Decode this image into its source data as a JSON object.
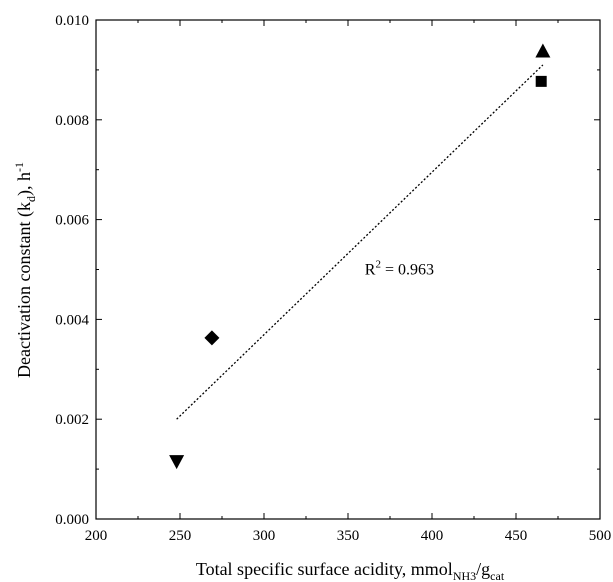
{
  "chart_data": {
    "type": "scatter",
    "title": "",
    "xlabel": {
      "main": "Total specific surface acidity, mmol",
      "sub1": "NH3",
      "sep": "/g",
      "sub2": "cat"
    },
    "ylabel": {
      "main": "Deactivation constant (k",
      "sub": "d",
      "mid": "), h",
      "sup": "-1"
    },
    "xlim": [
      200,
      500
    ],
    "ylim": [
      0.0,
      0.01
    ],
    "x_ticks": [
      200,
      250,
      300,
      350,
      400,
      450,
      500
    ],
    "x_tick_labels": [
      "200",
      "250",
      "300",
      "350",
      "400",
      "450",
      "500"
    ],
    "y_ticks": [
      0.0,
      0.002,
      0.004,
      0.006,
      0.008,
      0.01
    ],
    "y_tick_labels": [
      "0.000",
      "0.002",
      "0.004",
      "0.006",
      "0.008",
      "0.010"
    ],
    "grid": false,
    "legend": false,
    "points": [
      {
        "x": 248,
        "y": 0.00115,
        "marker": "triangle-down"
      },
      {
        "x": 269,
        "y": 0.00363,
        "marker": "diamond"
      },
      {
        "x": 465,
        "y": 0.00877,
        "marker": "square"
      },
      {
        "x": 466,
        "y": 0.00938,
        "marker": "triangle-up"
      }
    ],
    "fit_line": {
      "x": [
        248,
        466
      ],
      "y": [
        0.002,
        0.0091
      ],
      "style": "dotted"
    },
    "annotation": {
      "text_main": "R",
      "text_sup": "2",
      "text_rest": " = 0.963",
      "x": 360,
      "y": 0.0049
    },
    "colors": {
      "marker": "#000000",
      "axis": "#000000",
      "fit": "#000000"
    }
  }
}
